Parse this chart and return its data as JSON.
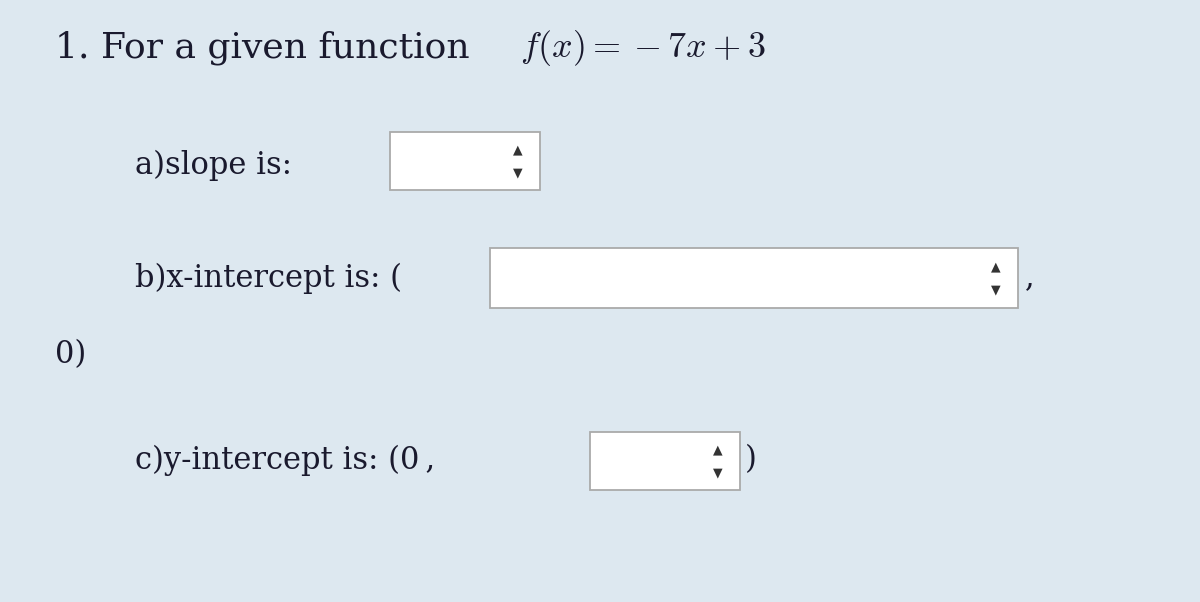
{
  "bg_color": "#dde8f0",
  "box_color": "#ffffff",
  "box_border": "#aaaaaa",
  "text_color": "#1a1a2e",
  "spinner_color": "#333333",
  "title_plain": "1. For a given function ",
  "title_math": "$f(x) = -7x + 3$",
  "label_a": "a)slope is:",
  "label_b": "b)x-intercept is: (",
  "label_c": "c)y-intercept is: (0 ,",
  "label_zero": "0)",
  "label_comma": ",",
  "label_close": ")",
  "fontsize_title": 26,
  "fontsize_labels": 22,
  "serif_font": "DejaVu Serif",
  "spinner_up": "▲",
  "spinner_down": "▼"
}
